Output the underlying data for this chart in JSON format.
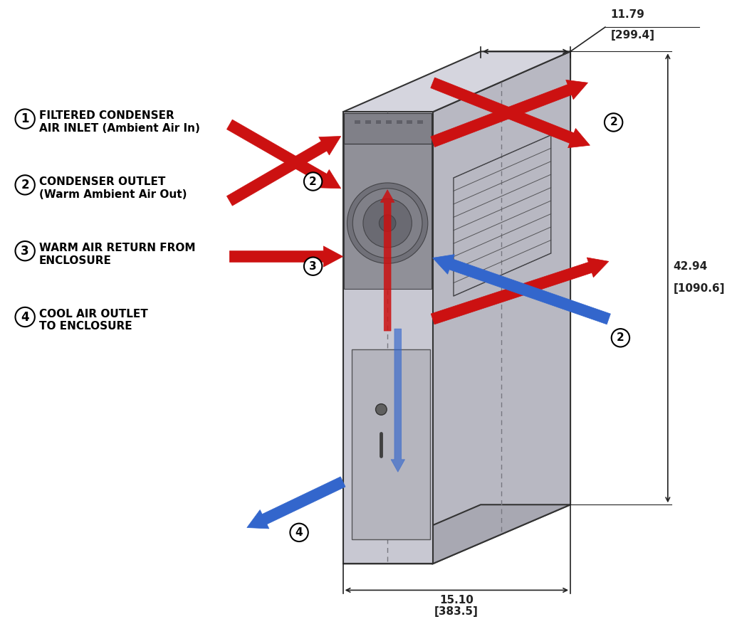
{
  "bg_color": "#ffffff",
  "legend_items": [
    {
      "num": "1",
      "text1": "FILTERED CONDENSER",
      "text2": "AIR INLET (Ambient Air In)"
    },
    {
      "num": "2",
      "text1": "CONDENSER OUTLET",
      "text2": "(Warm Ambient Air Out)"
    },
    {
      "num": "3",
      "text1": "WARM AIR RETURN FROM",
      "text2": "ENCLOSURE"
    },
    {
      "num": "4",
      "text1": "COOL AIR OUTLET",
      "text2": "TO ENCLOSURE"
    }
  ],
  "red_color": "#cc1111",
  "blue_color": "#3366cc",
  "enc_lc": "#333333",
  "dim_color": "#222222",
  "right_face_color": "#b8b8c2",
  "top_face_color": "#d5d5de",
  "front_face_color": "#c8c8d2",
  "bot_face_color": "#a8a8b2"
}
